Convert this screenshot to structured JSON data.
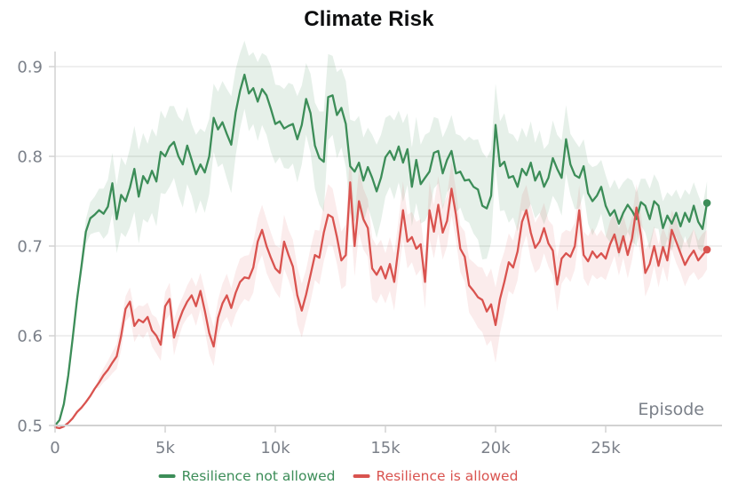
{
  "chart_data": {
    "type": "line",
    "title": "Climate Risk",
    "xlabel": "Episode",
    "ylabel": "",
    "xlim": [
      0,
      30000
    ],
    "ylim": [
      0.5,
      0.9
    ],
    "grid": "horizontal-only",
    "legend_position": "bottom-center",
    "x_start": 0,
    "x_step": 200,
    "x_ticks": [
      0,
      5000,
      10000,
      15000,
      20000,
      25000
    ],
    "x_tick_labels": [
      "0",
      "5k",
      "10k",
      "15k",
      "20k",
      "25k"
    ],
    "y_ticks": [
      0.5,
      0.6,
      0.7,
      0.8,
      0.9
    ],
    "y_tick_labels": [
      "0.5",
      "0.6",
      "0.7",
      "0.8",
      "0.9"
    ],
    "axis_color": "#d2d2d2",
    "grid_color": "#eaeaea",
    "tick_label_color": "#7b8089",
    "series": [
      {
        "name": "Resilience not allowed",
        "color": "#3c8d58",
        "band_color": "rgba(60,141,88,0.13)",
        "end_marker": true,
        "values": [
          0.5,
          0.506,
          0.524,
          0.556,
          0.597,
          0.641,
          0.678,
          0.716,
          0.731,
          0.735,
          0.74,
          0.736,
          0.744,
          0.77,
          0.73,
          0.757,
          0.75,
          0.765,
          0.786,
          0.755,
          0.778,
          0.77,
          0.784,
          0.772,
          0.805,
          0.8,
          0.811,
          0.816,
          0.8,
          0.791,
          0.812,
          0.796,
          0.78,
          0.791,
          0.782,
          0.8,
          0.843,
          0.83,
          0.838,
          0.825,
          0.813,
          0.849,
          0.873,
          0.891,
          0.87,
          0.876,
          0.861,
          0.875,
          0.868,
          0.853,
          0.836,
          0.839,
          0.831,
          0.834,
          0.836,
          0.819,
          0.835,
          0.864,
          0.848,
          0.812,
          0.798,
          0.794,
          0.866,
          0.868,
          0.846,
          0.854,
          0.836,
          0.789,
          0.783,
          0.793,
          0.773,
          0.788,
          0.776,
          0.761,
          0.776,
          0.799,
          0.806,
          0.796,
          0.811,
          0.793,
          0.808,
          0.766,
          0.796,
          0.769,
          0.776,
          0.783,
          0.804,
          0.806,
          0.781,
          0.796,
          0.806,
          0.781,
          0.783,
          0.773,
          0.774,
          0.766,
          0.763,
          0.745,
          0.742,
          0.756,
          0.835,
          0.789,
          0.794,
          0.776,
          0.778,
          0.766,
          0.786,
          0.779,
          0.793,
          0.773,
          0.783,
          0.766,
          0.776,
          0.798,
          0.786,
          0.776,
          0.819,
          0.791,
          0.779,
          0.776,
          0.789,
          0.759,
          0.75,
          0.756,
          0.766,
          0.745,
          0.734,
          0.74,
          0.725,
          0.737,
          0.746,
          0.739,
          0.73,
          0.749,
          0.745,
          0.73,
          0.75,
          0.745,
          0.72,
          0.734,
          0.725,
          0.737,
          0.722,
          0.737,
          0.727,
          0.745,
          0.727,
          0.719,
          0.748
        ],
        "band": [
          0,
          0,
          0,
          0,
          0,
          0.006,
          0.01,
          0.014,
          0.018,
          0.02,
          0.024,
          0.028,
          0.03,
          0.034,
          0.038,
          0.042,
          0.04,
          0.044,
          0.048,
          0.052,
          0.048,
          0.044,
          0.047,
          0.05,
          0.046,
          0.042,
          0.045,
          0.04,
          0.044,
          0.048,
          0.043,
          0.04,
          0.044,
          0.04,
          0.045,
          0.042,
          0.038,
          0.042,
          0.046,
          0.05,
          0.054,
          0.048,
          0.042,
          0.038,
          0.042,
          0.04,
          0.044,
          0.04,
          0.044,
          0.048,
          0.044,
          0.04,
          0.044,
          0.048,
          0.044,
          0.048,
          0.044,
          0.04,
          0.044,
          0.048,
          0.052,
          0.056,
          0.048,
          0.044,
          0.048,
          0.044,
          0.048,
          0.052,
          0.056,
          0.052,
          0.048,
          0.044,
          0.048,
          0.052,
          0.048,
          0.044,
          0.04,
          0.044,
          0.04,
          0.044,
          0.04,
          0.044,
          0.048,
          0.044,
          0.048,
          0.044,
          0.04,
          0.036,
          0.04,
          0.036,
          0.04,
          0.044,
          0.04,
          0.044,
          0.048,
          0.052,
          0.056,
          0.06,
          0.056,
          0.052,
          0.046,
          0.05,
          0.054,
          0.05,
          0.046,
          0.05,
          0.046,
          0.042,
          0.046,
          0.042,
          0.046,
          0.042,
          0.038,
          0.042,
          0.038,
          0.042,
          0.038,
          0.034,
          0.038,
          0.034,
          0.03,
          0.034,
          0.038,
          0.034,
          0.03,
          0.034,
          0.03,
          0.034,
          0.038,
          0.034,
          0.03,
          0.034,
          0.03,
          0.026,
          0.03,
          0.034,
          0.03,
          0.026,
          0.03,
          0.026,
          0.03,
          0.026,
          0.03,
          0.026,
          0.03,
          0.026,
          0.03,
          0.026,
          0.024
        ]
      },
      {
        "name": "Resilience is allowed",
        "color": "#d9534f",
        "band_color": "rgba(217,83,79,0.11)",
        "end_marker": true,
        "values": [
          0.498,
          0.497,
          0.499,
          0.503,
          0.508,
          0.515,
          0.52,
          0.526,
          0.533,
          0.541,
          0.548,
          0.556,
          0.562,
          0.57,
          0.577,
          0.6,
          0.63,
          0.638,
          0.611,
          0.618,
          0.615,
          0.621,
          0.606,
          0.6,
          0.59,
          0.633,
          0.641,
          0.598,
          0.615,
          0.628,
          0.638,
          0.645,
          0.633,
          0.65,
          0.628,
          0.603,
          0.588,
          0.62,
          0.636,
          0.645,
          0.631,
          0.648,
          0.66,
          0.665,
          0.664,
          0.676,
          0.705,
          0.718,
          0.7,
          0.687,
          0.675,
          0.67,
          0.705,
          0.69,
          0.677,
          0.645,
          0.628,
          0.646,
          0.668,
          0.69,
          0.687,
          0.715,
          0.735,
          0.732,
          0.71,
          0.684,
          0.69,
          0.771,
          0.7,
          0.75,
          0.73,
          0.72,
          0.675,
          0.668,
          0.677,
          0.664,
          0.68,
          0.66,
          0.7,
          0.74,
          0.705,
          0.71,
          0.697,
          0.702,
          0.66,
          0.74,
          0.716,
          0.746,
          0.715,
          0.728,
          0.764,
          0.735,
          0.697,
          0.688,
          0.656,
          0.65,
          0.643,
          0.64,
          0.627,
          0.635,
          0.612,
          0.641,
          0.66,
          0.682,
          0.676,
          0.694,
          0.727,
          0.74,
          0.715,
          0.698,
          0.705,
          0.72,
          0.703,
          0.695,
          0.657,
          0.686,
          0.692,
          0.688,
          0.7,
          0.74,
          0.69,
          0.683,
          0.694,
          0.687,
          0.692,
          0.686,
          0.702,
          0.713,
          0.693,
          0.711,
          0.69,
          0.709,
          0.743,
          0.712,
          0.67,
          0.68,
          0.7,
          0.678,
          0.699,
          0.684,
          0.718,
          0.705,
          0.692,
          0.679,
          0.688,
          0.695,
          0.684,
          0.69,
          0.696
        ],
        "band": [
          0,
          0,
          0,
          0,
          0,
          0,
          0,
          0,
          0,
          0,
          0.006,
          0.008,
          0.01,
          0.012,
          0.014,
          0.016,
          0.014,
          0.016,
          0.018,
          0.016,
          0.018,
          0.016,
          0.018,
          0.02,
          0.018,
          0.016,
          0.018,
          0.02,
          0.018,
          0.016,
          0.018,
          0.02,
          0.022,
          0.02,
          0.022,
          0.024,
          0.022,
          0.02,
          0.022,
          0.024,
          0.022,
          0.024,
          0.026,
          0.024,
          0.026,
          0.028,
          0.026,
          0.028,
          0.03,
          0.028,
          0.026,
          0.028,
          0.03,
          0.028,
          0.03,
          0.032,
          0.03,
          0.028,
          0.03,
          0.028,
          0.03,
          0.032,
          0.034,
          0.032,
          0.03,
          0.032,
          0.034,
          0.036,
          0.034,
          0.036,
          0.034,
          0.032,
          0.034,
          0.032,
          0.03,
          0.028,
          0.03,
          0.032,
          0.03,
          0.032,
          0.03,
          0.028,
          0.03,
          0.028,
          0.03,
          0.032,
          0.03,
          0.032,
          0.03,
          0.028,
          0.03,
          0.028,
          0.026,
          0.028,
          0.03,
          0.032,
          0.034,
          0.036,
          0.038,
          0.04,
          0.042,
          0.038,
          0.034,
          0.032,
          0.03,
          0.032,
          0.03,
          0.028,
          0.03,
          0.028,
          0.03,
          0.028,
          0.026,
          0.028,
          0.03,
          0.028,
          0.026,
          0.028,
          0.026,
          0.028,
          0.026,
          0.028,
          0.026,
          0.024,
          0.026,
          0.024,
          0.026,
          0.024,
          0.026,
          0.024,
          0.026,
          0.024,
          0.026,
          0.024,
          0.026,
          0.024,
          0.022,
          0.024,
          0.022,
          0.024,
          0.022,
          0.024,
          0.022,
          0.024,
          0.022,
          0.024,
          0.022,
          0.024,
          0.022
        ]
      }
    ]
  }
}
